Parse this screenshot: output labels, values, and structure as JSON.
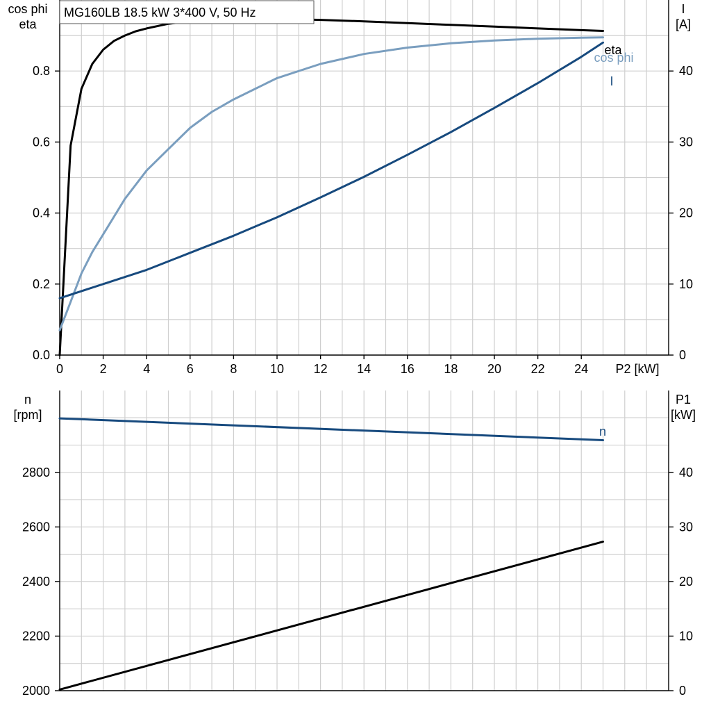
{
  "chart_data": [
    {
      "type": "line",
      "title": "MG160LB   18.5 kW   3*400 V, 50 Hz",
      "xlabel": "P2 [kW]",
      "ylabel_left": [
        "cos phi",
        "eta"
      ],
      "ylabel_right": [
        "I",
        "[A]"
      ],
      "xlim": [
        0,
        28
      ],
      "ylim_left": [
        0,
        1.0
      ],
      "ylim_right": [
        0,
        50
      ],
      "x_ticks": [
        0,
        2,
        4,
        6,
        8,
        10,
        12,
        14,
        16,
        18,
        20,
        22,
        24
      ],
      "y_ticks_left": [
        "0.0",
        "0.2",
        "0.4",
        "0.6",
        "0.8"
      ],
      "y_ticks_right": [
        "0",
        "10",
        "20",
        "30",
        "40"
      ],
      "grid": true,
      "series": [
        {
          "name": "eta",
          "axis": "left",
          "color": "#000000",
          "x": [
            0,
            0.5,
            1,
            1.5,
            2,
            2.5,
            3,
            3.5,
            4,
            5,
            6,
            7,
            8,
            9,
            10,
            12,
            14,
            16,
            18,
            20,
            22,
            24,
            25
          ],
          "y": [
            0.0,
            0.59,
            0.75,
            0.82,
            0.86,
            0.885,
            0.9,
            0.912,
            0.92,
            0.933,
            0.94,
            0.944,
            0.946,
            0.947,
            0.947,
            0.944,
            0.94,
            0.935,
            0.93,
            0.925,
            0.92,
            0.915,
            0.913
          ]
        },
        {
          "name": "cos phi",
          "axis": "left",
          "color": "#7a9ebf",
          "x": [
            0,
            0.5,
            1,
            1.5,
            2,
            3,
            4,
            5,
            6,
            7,
            8,
            10,
            12,
            14,
            16,
            18,
            20,
            22,
            24,
            25
          ],
          "y": [
            0.07,
            0.15,
            0.23,
            0.29,
            0.34,
            0.44,
            0.52,
            0.58,
            0.64,
            0.685,
            0.72,
            0.78,
            0.82,
            0.848,
            0.866,
            0.878,
            0.886,
            0.891,
            0.894,
            0.895
          ]
        },
        {
          "name": "I",
          "axis": "right",
          "color": "#174a7e",
          "x": [
            0,
            2,
            4,
            6,
            8,
            10,
            12,
            14,
            16,
            18,
            20,
            22,
            24,
            25
          ],
          "y": [
            8.0,
            10.0,
            12.0,
            14.4,
            16.8,
            19.4,
            22.2,
            25.1,
            28.2,
            31.4,
            34.8,
            38.3,
            42.0,
            44.0
          ]
        }
      ]
    },
    {
      "type": "line",
      "title": "",
      "xlabel": "",
      "ylabel_left": [
        "n",
        "[rpm]"
      ],
      "ylabel_right": [
        "P1",
        "[kW]"
      ],
      "xlim": [
        0,
        28
      ],
      "ylim_left": [
        2000,
        3100
      ],
      "ylim_right": [
        0,
        55
      ],
      "y_ticks_left": [
        "2000",
        "2200",
        "2400",
        "2600",
        "2800"
      ],
      "y_ticks_right": [
        "0",
        "10",
        "20",
        "30",
        "40"
      ],
      "grid": true,
      "series": [
        {
          "name": "n",
          "axis": "left",
          "color": "#174a7e",
          "x": [
            0,
            25
          ],
          "y": [
            2998,
            2918
          ]
        },
        {
          "name": "",
          "axis": "right",
          "color": "#000000",
          "x": [
            0,
            25
          ],
          "y": [
            0.2,
            27.3
          ]
        }
      ]
    }
  ]
}
